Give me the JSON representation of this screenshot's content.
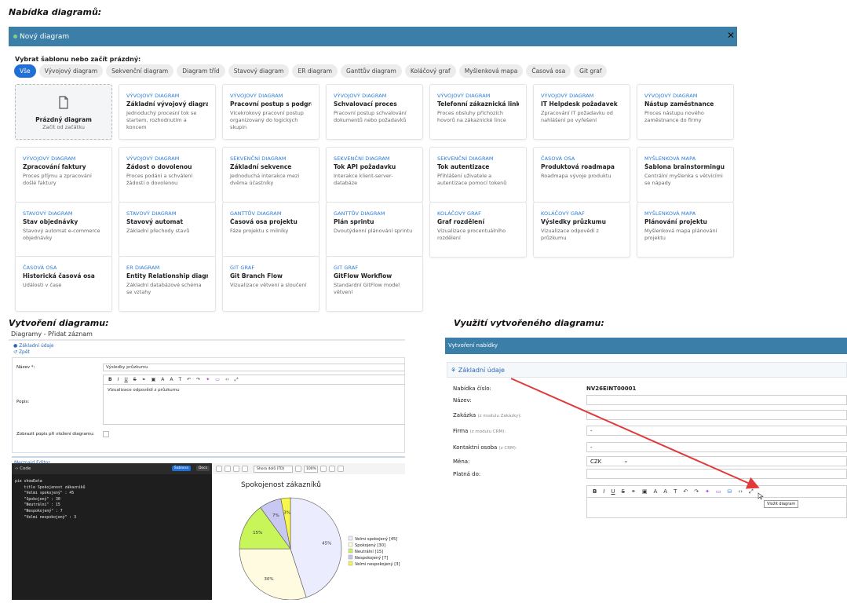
{
  "captions": {
    "menu": "Nabídka diagramů:",
    "create": "Vytvoření diagramu:",
    "usage": "Využití vytvořeného diagramu:"
  },
  "modal": {
    "title": "Nový diagram",
    "close": "✕",
    "template_label": "Vybrat šablonu nebo začít prázdný:",
    "chips": [
      "Vše",
      "Vývojový diagram",
      "Sekvenční diagram",
      "Diagram tříd",
      "Stavový diagram",
      "ER diagram",
      "Ganttův diagram",
      "Koláčový graf",
      "Myšlenková mapa",
      "Časová osa",
      "Git graf"
    ],
    "blank": {
      "title": "Prázdný diagram",
      "desc": "Začít od začátku"
    },
    "cards": [
      {
        "cat": "VÝVOJOVÝ DIAGRAM",
        "title": "Základní vývojový diagram",
        "desc": "Jednoduchý procesní tok se startem, rozhodnutím a koncem"
      },
      {
        "cat": "VÝVOJOVÝ DIAGRAM",
        "title": "Pracovní postup s podgrafy",
        "desc": "Vícekrokový pracovní postup organizovaný do logických skupin"
      },
      {
        "cat": "VÝVOJOVÝ DIAGRAM",
        "title": "Schvalovací proces",
        "desc": "Pracovní postup schvalování dokumentů nebo požadavků"
      },
      {
        "cat": "VÝVOJOVÝ DIAGRAM",
        "title": "Telefonní zákaznická linka",
        "desc": "Proces obsluhy příchozích hovorů na zákaznické lince"
      },
      {
        "cat": "VÝVOJOVÝ DIAGRAM",
        "title": "IT Helpdesk požadavek",
        "desc": "Zpracování IT požadavku od nahlášení po vyřešení"
      },
      {
        "cat": "VÝVOJOVÝ DIAGRAM",
        "title": "Nástup zaměstnance",
        "desc": "Proces nástupu nového zaměstnance do firmy"
      },
      {
        "cat": "VÝVOJOVÝ DIAGRAM",
        "title": "Zpracování faktury",
        "desc": "Proces příjmu a zpracování došlé faktury"
      },
      {
        "cat": "VÝVOJOVÝ DIAGRAM",
        "title": "Žádost o dovolenou",
        "desc": "Proces podání a schválení žádosti o dovolenou"
      },
      {
        "cat": "SEKVENČNÍ DIAGRAM",
        "title": "Základní sekvence",
        "desc": "Jednoduchá interakce mezi dvěma účastníky"
      },
      {
        "cat": "SEKVENČNÍ DIAGRAM",
        "title": "Tok API požadavku",
        "desc": "Interakce klient-server-databáze"
      },
      {
        "cat": "SEKVENČNÍ DIAGRAM",
        "title": "Tok autentizace",
        "desc": "Přihlášení uživatele a autentizace pomocí tokenů"
      },
      {
        "cat": "ČASOVÁ OSA",
        "title": "Produktová roadmapa",
        "desc": "Roadmapa vývoje produktu"
      },
      {
        "cat": "MYŠLENKOVÁ MAPA",
        "title": "Šablona brainstormingu",
        "desc": "Centrální myšlenka s větvícími se nápady"
      },
      {
        "cat": "STAVOVÝ DIAGRAM",
        "title": "Stav objednávky",
        "desc": "Stavový automat e-commerce objednávky"
      },
      {
        "cat": "STAVOVÝ DIAGRAM",
        "title": "Stavový automat",
        "desc": "Základní přechody stavů"
      },
      {
        "cat": "GANTTŮV DIAGRAM",
        "title": "Časová osa projektu",
        "desc": "Fáze projektu s milníky"
      },
      {
        "cat": "GANTTŮV DIAGRAM",
        "title": "Plán sprintu",
        "desc": "Dvoutýdenní plánování sprintu"
      },
      {
        "cat": "KOLÁČOVÝ GRAF",
        "title": "Graf rozdělení",
        "desc": "Vizualizace procentuálního rozdělení"
      },
      {
        "cat": "KOLÁČOVÝ GRAF",
        "title": "Výsledky průzkumu",
        "desc": "Vizualizace odpovědí z průzkumu"
      },
      {
        "cat": "MYŠLENKOVÁ MAPA",
        "title": "Plánování projektu",
        "desc": "Myšlenková mapa plánování projektu"
      },
      {
        "cat": "ČASOVÁ OSA",
        "title": "Historická časová osa",
        "desc": "Události v čase"
      },
      {
        "cat": "ER DIAGRAM",
        "title": "Entity Relationship diagram",
        "desc": "Základní databázové schéma se vztahy"
      },
      {
        "cat": "GIT GRAF",
        "title": "Git Branch Flow",
        "desc": "Vizualizace větvení a sloučení"
      },
      {
        "cat": "GIT GRAF",
        "title": "GitFlow Workflow",
        "desc": "Standardní GitFlow model větvení"
      }
    ]
  },
  "create": {
    "title": "Diagramy - Přidat záznam",
    "basic_link": "Základní údaje",
    "back_link": "Zpět",
    "name_label": "Název *:",
    "name_value": "Výsledky průzkumu",
    "desc_label": "Popis:",
    "desc_value": "Vizualizace odpovědí z průzkumu",
    "show_desc_label": "Zobrazit popis při vložení diagramu:",
    "mermaid_title": "Mermaid Editor",
    "code_tab": "Code",
    "code_btn_sample": "Šablona",
    "code_btn_docs": "Docs",
    "code_lines": [
      "pie showData",
      "    title Spokojenost zákazníků",
      "    \"Velmi spokojený\" : 45",
      "    \"Spokojený\" : 30",
      "    \"Neutrální\" : 15",
      "    \"Nespokojený\" : 7",
      "    \"Velmi nespokojený\" : 3"
    ],
    "direction_select": "Shora dolů (TD)",
    "zoom": "100%"
  },
  "chart_data": {
    "type": "pie",
    "title": "Spokojenost zákazníků",
    "categories": [
      "Velmi spokojený",
      "Spokojený",
      "Neutrální",
      "Nespokojený",
      "Velmi nespokojený"
    ],
    "values": [
      45,
      30,
      15,
      7,
      3
    ],
    "legend": [
      "Velmi spokojený [45]",
      "Spokojený [30]",
      "Neutrální [15]",
      "Nespokojený [7]",
      "Velmi nespokojený [3]"
    ],
    "colors": [
      "#ececff",
      "#fffbe0",
      "#c8f65a",
      "#c8c8f2",
      "#f6f64c"
    ],
    "slice_labels": [
      "45%",
      "30%",
      "15%",
      "7%",
      "3%"
    ],
    "legend_position": "right"
  },
  "usage": {
    "bar_title": "Vytvoření nabídky",
    "panel_title": "Základní údaje",
    "fields": [
      {
        "label": "Nabídka číslo:",
        "hint": "",
        "value": "NV26EINT00001"
      },
      {
        "label": "Název:",
        "hint": "",
        "value": ""
      },
      {
        "label": "Zakázka",
        "hint": "(z modulu Zakázky):",
        "value": ""
      },
      {
        "label": "Firma",
        "hint": "(z modulu CRM):",
        "value": "-"
      },
      {
        "label": "Kontaktní osoba",
        "hint": "(z CRM):",
        "value": "-"
      },
      {
        "label": "Měna:",
        "hint": "",
        "value": "CZK"
      },
      {
        "label": "Platná do:",
        "hint": "",
        "value": ""
      }
    ],
    "tooltip": "Vložit diagram"
  },
  "colors": {
    "header_blue": "#3b7ea8",
    "link_blue": "#2a7ad6",
    "arrow_red": "#e03a3a"
  }
}
